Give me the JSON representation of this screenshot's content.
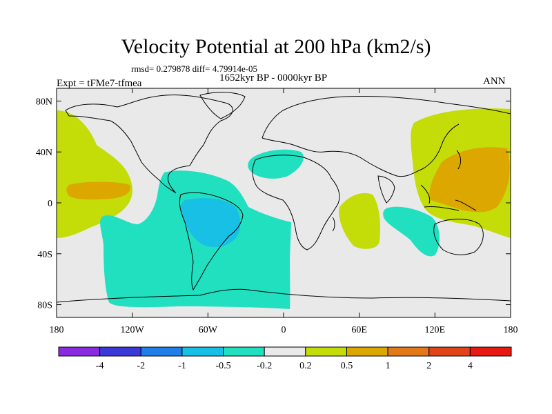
{
  "figure": {
    "title": "Velocity Potential at 200 hPa (km2/s)",
    "stats": "rmsd= 0.279878 diff= 4.79914e-05",
    "experiment": "Expt = tFMe7-tfmea",
    "period": "1652kyr BP - 0000kyr BP",
    "season": "ANN"
  },
  "map": {
    "projection": "cylindrical equidistant",
    "lon_range": [
      -180,
      180
    ],
    "lat_range": [
      -90,
      90
    ],
    "x_tick_labels": [
      "180",
      "120W",
      "60W",
      "0",
      "60E",
      "120E",
      "180"
    ],
    "y_tick_labels": [
      "80N",
      "40N",
      "0",
      "40S",
      "80S"
    ],
    "background_color": "#e9e9e9",
    "coastline_color": "#000000"
  },
  "colorbar": {
    "labels": [
      "-4",
      "-2",
      "-1",
      "-0.5",
      "-0.2",
      "0.2",
      "0.5",
      "1",
      "2",
      "4"
    ],
    "colors": [
      "#8a2be2",
      "#3a3ad8",
      "#1e7fe6",
      "#19c0e6",
      "#20e0c0",
      "#e9e9e9",
      "#c4dc08",
      "#dca800",
      "#e27818",
      "#e04418",
      "#e81a10"
    ]
  },
  "contours": {
    "filled_regions": [
      {
        "name": "central-pacific-positive",
        "level": "0.2 to 0.5",
        "color": "#c4dc08"
      },
      {
        "name": "central-pacific-core",
        "level": "0.5 to 1",
        "color": "#dca800"
      },
      {
        "name": "south-america-negative",
        "level": "-0.5 to -0.2",
        "color": "#20e0c0"
      },
      {
        "name": "amazon-core",
        "level": "-1 to -0.5",
        "color": "#19c0e6"
      },
      {
        "name": "north-africa-negative",
        "level": "-0.5 to -0.2",
        "color": "#20e0c0"
      },
      {
        "name": "east-africa-positive",
        "level": "0.2 to 0.5",
        "color": "#c4dc08"
      },
      {
        "name": "south-indian-negative",
        "level": "-0.5 to -0.2",
        "color": "#20e0c0"
      },
      {
        "name": "west-pacific-positive",
        "level": "0.2 to 0.5",
        "color": "#c4dc08"
      },
      {
        "name": "west-pacific-core",
        "level": "0.5 to 1",
        "color": "#dca800"
      }
    ]
  }
}
